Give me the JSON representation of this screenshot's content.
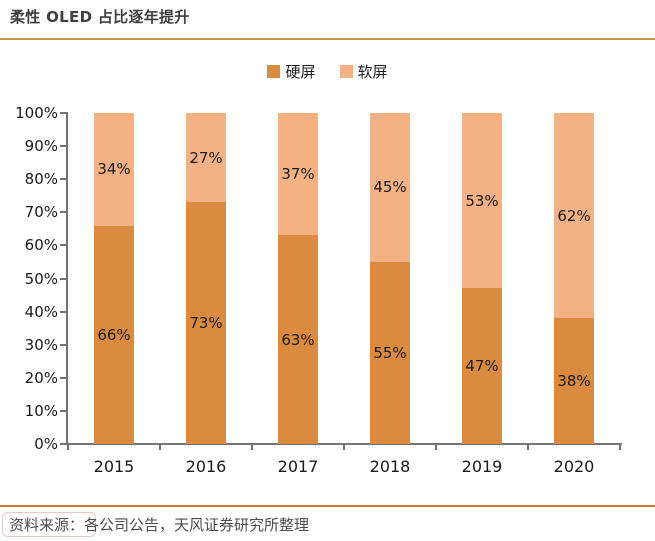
{
  "header": {
    "title": "柔性 OLED 占比逐年提升"
  },
  "chart_data": {
    "type": "bar",
    "stacked": true,
    "title": "柔性 OLED 占比逐年提升",
    "categories": [
      "2015",
      "2016",
      "2017",
      "2018",
      "2019",
      "2020"
    ],
    "series": [
      {
        "name": "硬屏",
        "color": "#DB8B3F",
        "values": [
          66,
          73,
          63,
          55,
          47,
          38
        ]
      },
      {
        "name": "软屏",
        "color": "#F4B183",
        "values": [
          34,
          27,
          37,
          45,
          53,
          62
        ]
      }
    ],
    "value_label_suffix": "%",
    "xlabel": "",
    "ylabel": "",
    "ylim": [
      0,
      100
    ],
    "yticks": [
      "0%",
      "10%",
      "20%",
      "30%",
      "40%",
      "50%",
      "60%",
      "70%",
      "80%",
      "90%",
      "100%"
    ],
    "legend_position": "top-center",
    "grid": false
  },
  "footer": {
    "source": "资料来源：各公司公告，天风证券研究所整理"
  },
  "colors": {
    "title_rule": "#C49A4E",
    "footer_rule": "#C97C35",
    "axis": "#737373",
    "label_text": "#1a1a1a"
  }
}
